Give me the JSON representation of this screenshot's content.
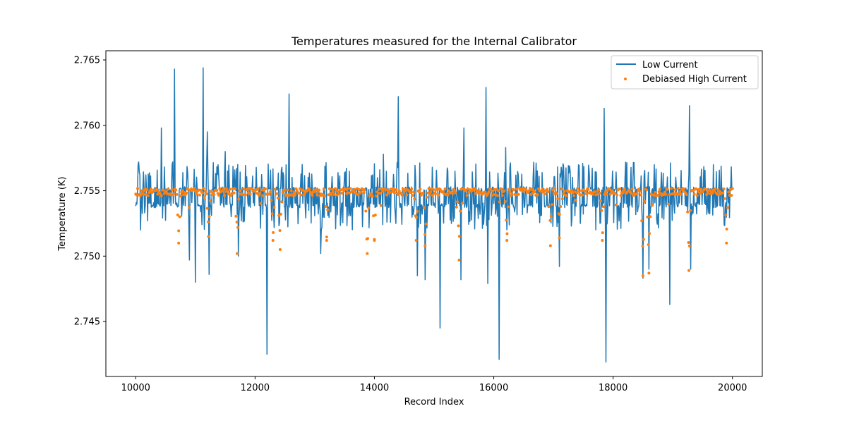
{
  "chart_data": {
    "type": "line",
    "title": "Temperatures measured for the Internal Calibrator",
    "xlabel": "Record Index",
    "ylabel": "Temperature (K)",
    "xlim": [
      9500,
      20500
    ],
    "ylim": [
      2.7408,
      2.7657
    ],
    "x_ticks": [
      10000,
      12000,
      14000,
      16000,
      18000,
      20000
    ],
    "x_tick_labels": [
      "10000",
      "12000",
      "14000",
      "16000",
      "18000",
      "20000"
    ],
    "y_ticks": [
      2.745,
      2.75,
      2.755,
      2.76,
      2.765
    ],
    "y_tick_labels": [
      "2.745",
      "2.750",
      "2.755",
      "2.760",
      "2.765"
    ],
    "grid": false,
    "legend_position": "top-right",
    "series": [
      {
        "name": "Low Current",
        "kind": "line",
        "color": "#1f77b4",
        "baseline_band": [
          2.7537,
          2.7553
        ],
        "upper_band": [
          2.756,
          2.7572
        ],
        "lower_band": [
          2.752,
          2.7535
        ],
        "spikes": [
          {
            "x": 10050,
            "y": 2.7572
          },
          {
            "x": 10080,
            "y": 2.752
          },
          {
            "x": 10430,
            "y": 2.7598
          },
          {
            "x": 10650,
            "y": 2.7643
          },
          {
            "x": 10900,
            "y": 2.7497
          },
          {
            "x": 11000,
            "y": 2.748
          },
          {
            "x": 11130,
            "y": 2.7644
          },
          {
            "x": 11200,
            "y": 2.7595
          },
          {
            "x": 11230,
            "y": 2.7486
          },
          {
            "x": 11500,
            "y": 2.758
          },
          {
            "x": 11720,
            "y": 2.75
          },
          {
            "x": 12200,
            "y": 2.7425
          },
          {
            "x": 12570,
            "y": 2.7624
          },
          {
            "x": 13100,
            "y": 2.7502
          },
          {
            "x": 14150,
            "y": 2.7578
          },
          {
            "x": 14400,
            "y": 2.7622
          },
          {
            "x": 14720,
            "y": 2.7485
          },
          {
            "x": 14850,
            "y": 2.7482
          },
          {
            "x": 15100,
            "y": 2.7445
          },
          {
            "x": 15450,
            "y": 2.7482
          },
          {
            "x": 15500,
            "y": 2.7598
          },
          {
            "x": 15870,
            "y": 2.7629
          },
          {
            "x": 15900,
            "y": 2.7479
          },
          {
            "x": 16090,
            "y": 2.7421
          },
          {
            "x": 16200,
            "y": 2.7583
          },
          {
            "x": 17100,
            "y": 2.7492
          },
          {
            "x": 17850,
            "y": 2.7613
          },
          {
            "x": 17880,
            "y": 2.7419
          },
          {
            "x": 18500,
            "y": 2.7483
          },
          {
            "x": 18600,
            "y": 2.749
          },
          {
            "x": 18950,
            "y": 2.7463
          },
          {
            "x": 19280,
            "y": 2.7615
          },
          {
            "x": 19300,
            "y": 2.749
          }
        ]
      },
      {
        "name": "Debiased High Current",
        "kind": "scatter",
        "color": "#ff7f0e",
        "center": 2.7549,
        "dips": [
          {
            "x": 10720,
            "y": 2.751
          },
          {
            "x": 11220,
            "y": 2.7515
          },
          {
            "x": 11700,
            "y": 2.7502
          },
          {
            "x": 12300,
            "y": 2.7512
          },
          {
            "x": 12420,
            "y": 2.7505
          },
          {
            "x": 13200,
            "y": 2.7512
          },
          {
            "x": 13880,
            "y": 2.7502
          },
          {
            "x": 14000,
            "y": 2.7512
          },
          {
            "x": 14700,
            "y": 2.7512
          },
          {
            "x": 14850,
            "y": 2.7508
          },
          {
            "x": 15420,
            "y": 2.7497
          },
          {
            "x": 16220,
            "y": 2.7512
          },
          {
            "x": 16950,
            "y": 2.7508
          },
          {
            "x": 17100,
            "y": 2.7514
          },
          {
            "x": 17820,
            "y": 2.7512
          },
          {
            "x": 18500,
            "y": 2.7485
          },
          {
            "x": 18600,
            "y": 2.7487
          },
          {
            "x": 19270,
            "y": 2.7489
          },
          {
            "x": 19900,
            "y": 2.751
          }
        ]
      }
    ]
  }
}
